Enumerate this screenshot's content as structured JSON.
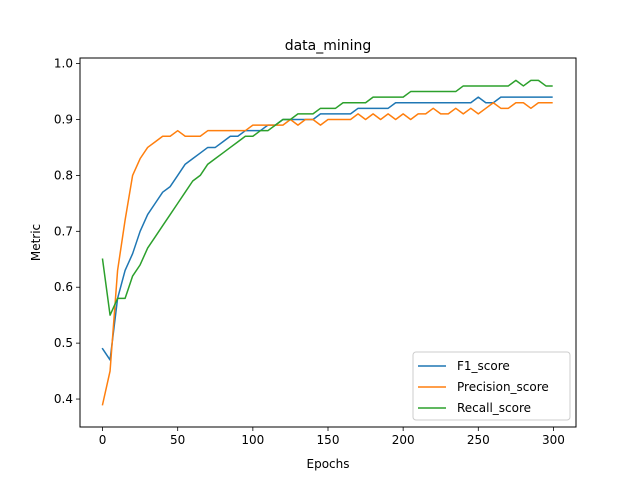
{
  "chart_data": {
    "type": "line",
    "title": "data_mining",
    "xlabel": "Epochs",
    "ylabel": "Metric",
    "xlim": [
      -15,
      315
    ],
    "ylim": [
      0.35,
      1.01
    ],
    "xticks": [
      0,
      50,
      100,
      150,
      200,
      250,
      300
    ],
    "xtick_labels": [
      "0",
      "50",
      "100",
      "150",
      "200",
      "250",
      "300"
    ],
    "yticks": [
      0.4,
      0.5,
      0.6,
      0.7,
      0.8,
      0.9,
      1.0
    ],
    "ytick_labels": [
      "0.4",
      "0.5",
      "0.6",
      "0.7",
      "0.8",
      "0.9",
      "1.0"
    ],
    "grid": false,
    "legend_position": "lower-right",
    "x": [
      0,
      5,
      10,
      15,
      20,
      25,
      30,
      35,
      40,
      45,
      50,
      55,
      60,
      65,
      70,
      75,
      80,
      85,
      90,
      95,
      100,
      105,
      110,
      115,
      120,
      125,
      130,
      135,
      140,
      145,
      150,
      155,
      160,
      165,
      170,
      175,
      180,
      185,
      190,
      195,
      200,
      205,
      210,
      215,
      220,
      225,
      230,
      235,
      240,
      245,
      250,
      255,
      260,
      265,
      270,
      275,
      280,
      285,
      290,
      295,
      299
    ],
    "series": [
      {
        "name": "F1_score",
        "color": "#1f77b4",
        "values": [
          0.49,
          0.47,
          0.58,
          0.63,
          0.66,
          0.7,
          0.73,
          0.75,
          0.77,
          0.78,
          0.8,
          0.82,
          0.83,
          0.84,
          0.85,
          0.85,
          0.86,
          0.87,
          0.87,
          0.88,
          0.88,
          0.88,
          0.89,
          0.89,
          0.9,
          0.9,
          0.9,
          0.9,
          0.9,
          0.91,
          0.91,
          0.91,
          0.91,
          0.91,
          0.92,
          0.92,
          0.92,
          0.92,
          0.92,
          0.93,
          0.93,
          0.93,
          0.93,
          0.93,
          0.93,
          0.93,
          0.93,
          0.93,
          0.93,
          0.93,
          0.94,
          0.93,
          0.93,
          0.94,
          0.94,
          0.94,
          0.94,
          0.94,
          0.94,
          0.94,
          0.94
        ]
      },
      {
        "name": "Precision_score",
        "color": "#ff7f0e",
        "values": [
          0.39,
          0.45,
          0.63,
          0.72,
          0.8,
          0.83,
          0.85,
          0.86,
          0.87,
          0.87,
          0.88,
          0.87,
          0.87,
          0.87,
          0.88,
          0.88,
          0.88,
          0.88,
          0.88,
          0.88,
          0.89,
          0.89,
          0.89,
          0.89,
          0.89,
          0.9,
          0.89,
          0.9,
          0.9,
          0.89,
          0.9,
          0.9,
          0.9,
          0.9,
          0.91,
          0.9,
          0.91,
          0.9,
          0.91,
          0.9,
          0.91,
          0.9,
          0.91,
          0.91,
          0.92,
          0.91,
          0.91,
          0.92,
          0.91,
          0.92,
          0.91,
          0.92,
          0.93,
          0.92,
          0.92,
          0.93,
          0.93,
          0.92,
          0.93,
          0.93,
          0.93
        ]
      },
      {
        "name": "Recall_score",
        "color": "#2ca02c",
        "values": [
          0.65,
          0.55,
          0.58,
          0.58,
          0.62,
          0.64,
          0.67,
          0.69,
          0.71,
          0.73,
          0.75,
          0.77,
          0.79,
          0.8,
          0.82,
          0.83,
          0.84,
          0.85,
          0.86,
          0.87,
          0.87,
          0.88,
          0.88,
          0.89,
          0.9,
          0.9,
          0.91,
          0.91,
          0.91,
          0.92,
          0.92,
          0.92,
          0.93,
          0.93,
          0.93,
          0.93,
          0.94,
          0.94,
          0.94,
          0.94,
          0.94,
          0.95,
          0.95,
          0.95,
          0.95,
          0.95,
          0.95,
          0.95,
          0.96,
          0.96,
          0.96,
          0.96,
          0.96,
          0.96,
          0.96,
          0.97,
          0.96,
          0.97,
          0.97,
          0.96,
          0.96
        ]
      }
    ]
  }
}
